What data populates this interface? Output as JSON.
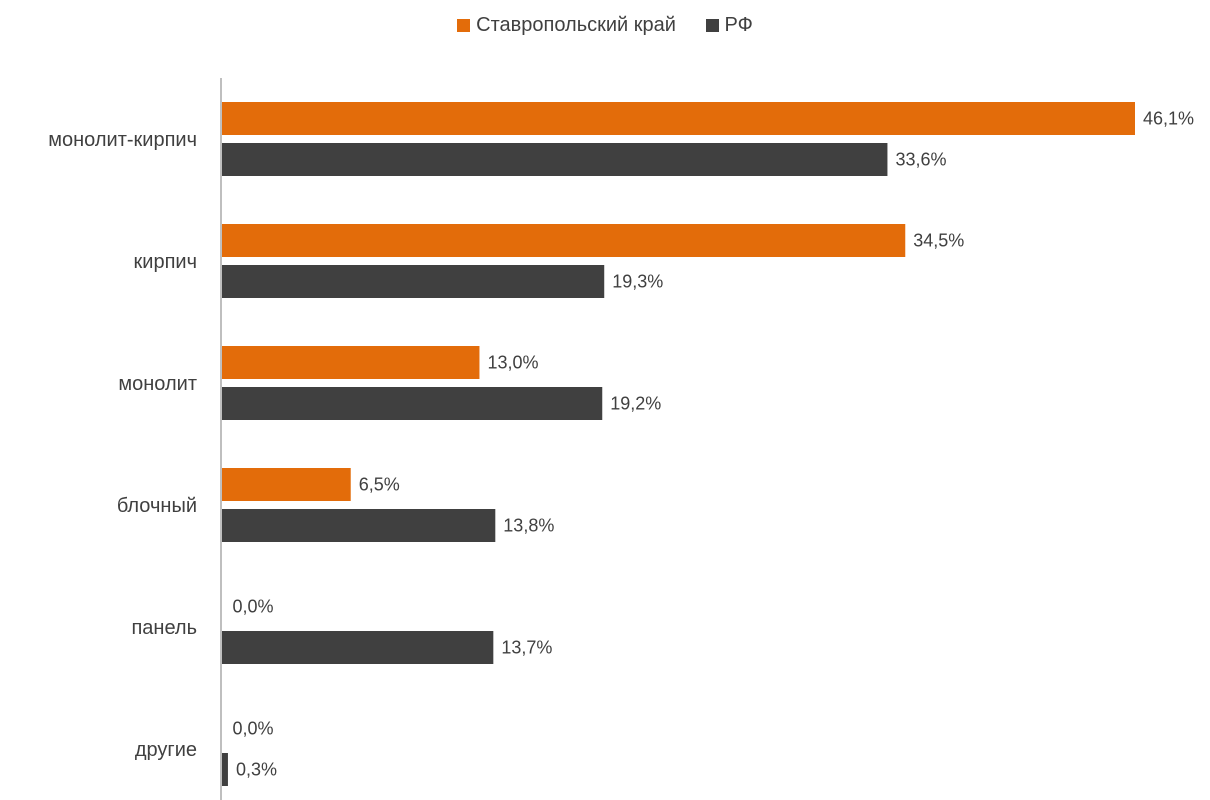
{
  "chart_data": {
    "type": "bar",
    "orientation": "horizontal",
    "categories": [
      "монолит-кирпич",
      "кирпич",
      "монолит",
      "блочный",
      "панель",
      "другие"
    ],
    "series": [
      {
        "name": "Ставропольский край",
        "color": "#E36C0A",
        "values": [
          46.1,
          34.5,
          13.0,
          6.5,
          0.0,
          0.0
        ],
        "labels": [
          "46,1%",
          "34,5%",
          "13,0%",
          "6,5%",
          "0,0%",
          "0,0%"
        ]
      },
      {
        "name": "РФ",
        "color": "#404040",
        "values": [
          33.6,
          19.3,
          19.2,
          13.8,
          13.7,
          0.3
        ],
        "labels": [
          "33,6%",
          "19,3%",
          "19,2%",
          "13,8%",
          "13,7%",
          "0,3%"
        ]
      }
    ],
    "xlim": [
      0,
      46.1
    ],
    "legend_position": "top",
    "grid": false
  }
}
